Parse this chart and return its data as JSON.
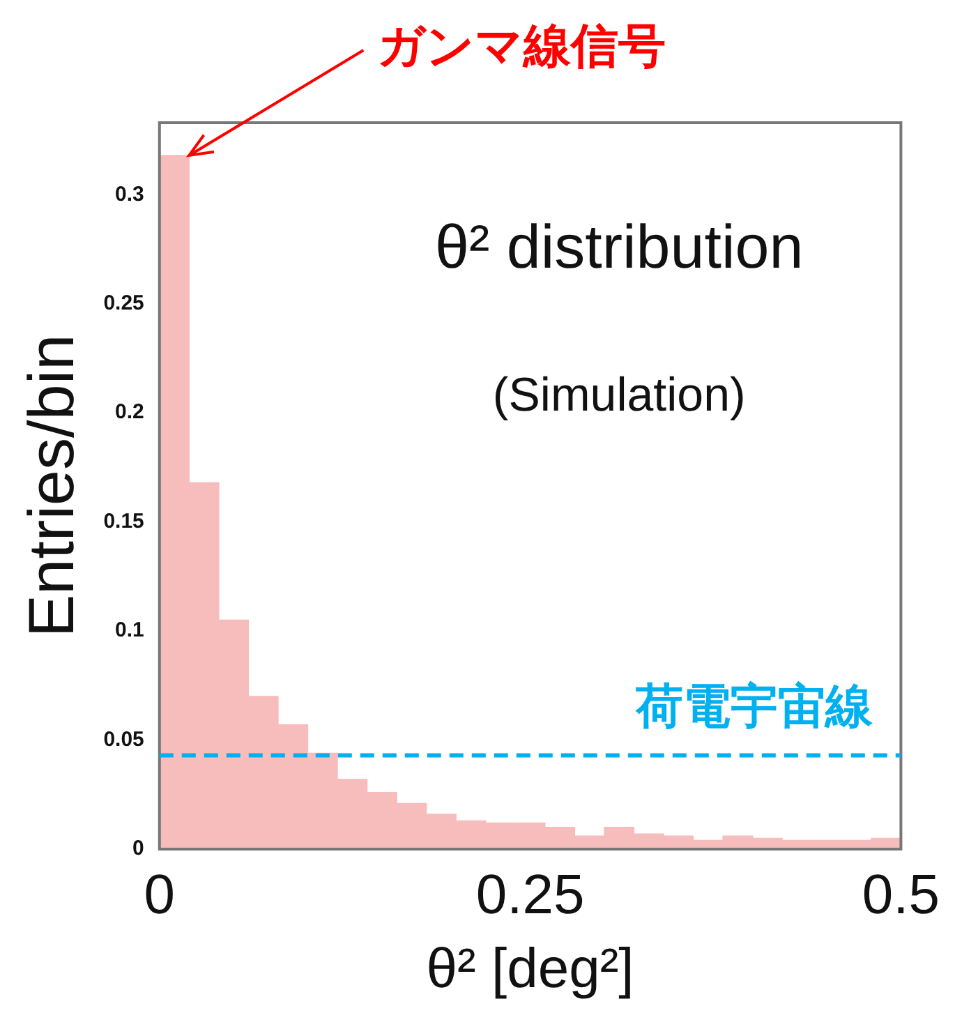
{
  "chart_data": {
    "type": "histogram",
    "xlabel": "θ² [deg²]",
    "ylabel": "Entries/bin",
    "bins": [
      0,
      0.02,
      0.04,
      0.06,
      0.08,
      0.1,
      0.12,
      0.14,
      0.16,
      0.18,
      0.2,
      0.22,
      0.24,
      0.26,
      0.28,
      0.3,
      0.32,
      0.34,
      0.36,
      0.38,
      0.4,
      0.42,
      0.44,
      0.46,
      0.48,
      0.5
    ],
    "values": [
      0.318,
      0.168,
      0.105,
      0.07,
      0.057,
      0.044,
      0.032,
      0.026,
      0.021,
      0.016,
      0.013,
      0.012,
      0.012,
      0.01,
      0.006,
      0.01,
      0.007,
      0.006,
      0.004,
      0.006,
      0.005,
      0.004,
      0.004,
      0.004,
      0.005
    ],
    "color": "#f7bcbc",
    "xlim": [
      0,
      0.5
    ],
    "xticks": [
      0,
      0.25,
      0.5
    ],
    "ylim": [
      0,
      0.333
    ],
    "yticks": [
      0,
      0.05,
      0.1,
      0.15,
      0.2,
      0.25,
      0.3
    ],
    "grid": false,
    "legend": false,
    "ref_lines": [
      {
        "axis": "y",
        "value": 0.043,
        "label": "荷電宇宙線",
        "color": "#00b0f0",
        "line_style": "dashed"
      }
    ],
    "annotations": [
      {
        "text": "ガンマ線信号",
        "x": 0.02,
        "y": 0.318
      },
      "θ² distribution",
      "(Simulation)"
    ]
  }
}
